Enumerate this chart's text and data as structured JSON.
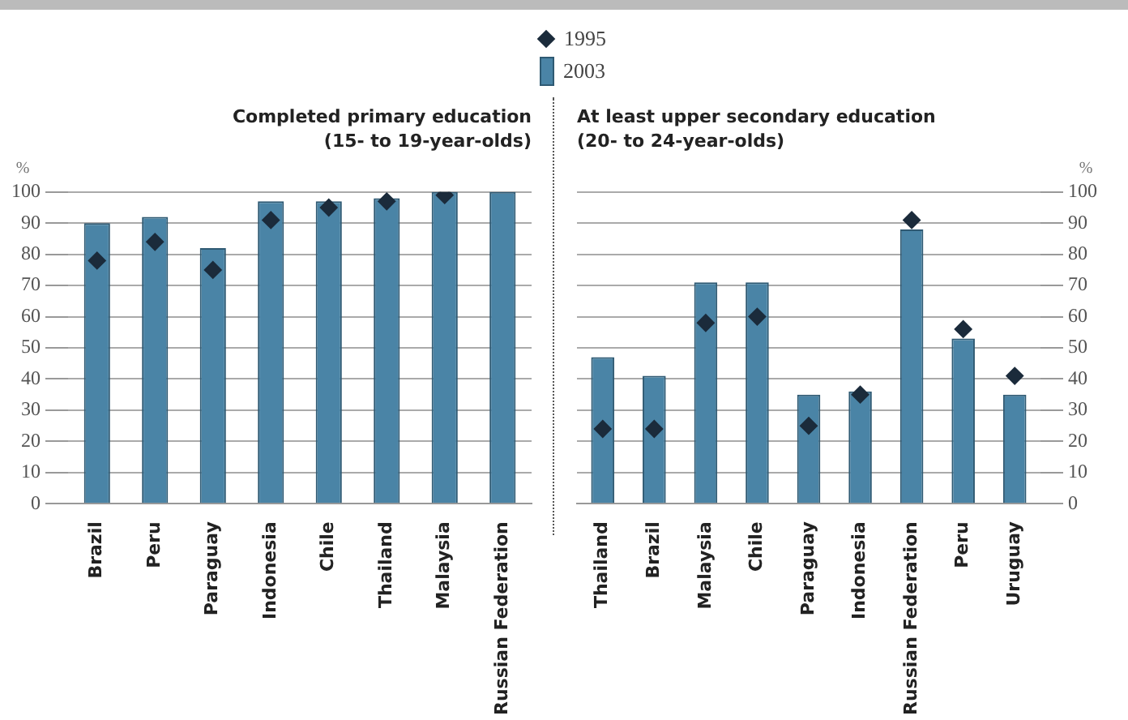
{
  "chart_data": [
    {
      "type": "bar",
      "title": "Completed primary education",
      "subtitle": "(15- to 19-year-olds)",
      "ylabel": "%",
      "categories": [
        "Brazil",
        "Peru",
        "Paraguay",
        "Indonesia",
        "Chile",
        "Thailand",
        "Malaysia",
        "Russian Federation"
      ],
      "series": [
        {
          "name": "1995",
          "type": "scatter",
          "marker": "diamond",
          "color": "#1b2b3b",
          "x": [
            "Brazil",
            "Peru",
            "Paraguay",
            "Indonesia",
            "Chile",
            "Thailand",
            "Malaysia",
            "Russian Federation"
          ],
          "values": [
            78,
            84,
            75,
            91,
            95,
            97,
            99,
            null
          ]
        },
        {
          "name": "2003",
          "color": "#4a84a6",
          "values": [
            90,
            92,
            82,
            97,
            97,
            98,
            100,
            100
          ]
        }
      ],
      "ylim": [
        0,
        100
      ],
      "yticks": [
        0,
        10,
        20,
        30,
        40,
        50,
        60,
        70,
        80,
        90,
        100
      ],
      "grid": "y",
      "legend": "top"
    },
    {
      "type": "bar",
      "title": "At least upper secondary education",
      "subtitle": "(20- to 24-year-olds)",
      "ylabel": "%",
      "categories": [
        "Thailand",
        "Brazil",
        "Malaysia",
        "Chile",
        "Paraguay",
        "Indonesia",
        "Russian Federation",
        "Peru",
        "Uruguay"
      ],
      "series": [
        {
          "name": "1995",
          "type": "scatter",
          "marker": "diamond",
          "color": "#1b2b3b",
          "x": [
            "Thailand",
            "Brazil",
            "Malaysia",
            "Chile",
            "Paraguay",
            "Indonesia",
            "Russian Federation",
            "Peru",
            "Uruguay"
          ],
          "values": [
            24,
            24,
            58,
            60,
            25,
            35,
            91,
            56,
            41
          ]
        },
        {
          "name": "2003",
          "color": "#4a84a6",
          "values": [
            47,
            41,
            71,
            71,
            35,
            36,
            88,
            53,
            35
          ]
        }
      ],
      "ylim": [
        0,
        100
      ],
      "yticks": [
        0,
        10,
        20,
        30,
        40,
        50,
        60,
        70,
        80,
        90,
        100
      ],
      "grid": "y"
    }
  ]
}
